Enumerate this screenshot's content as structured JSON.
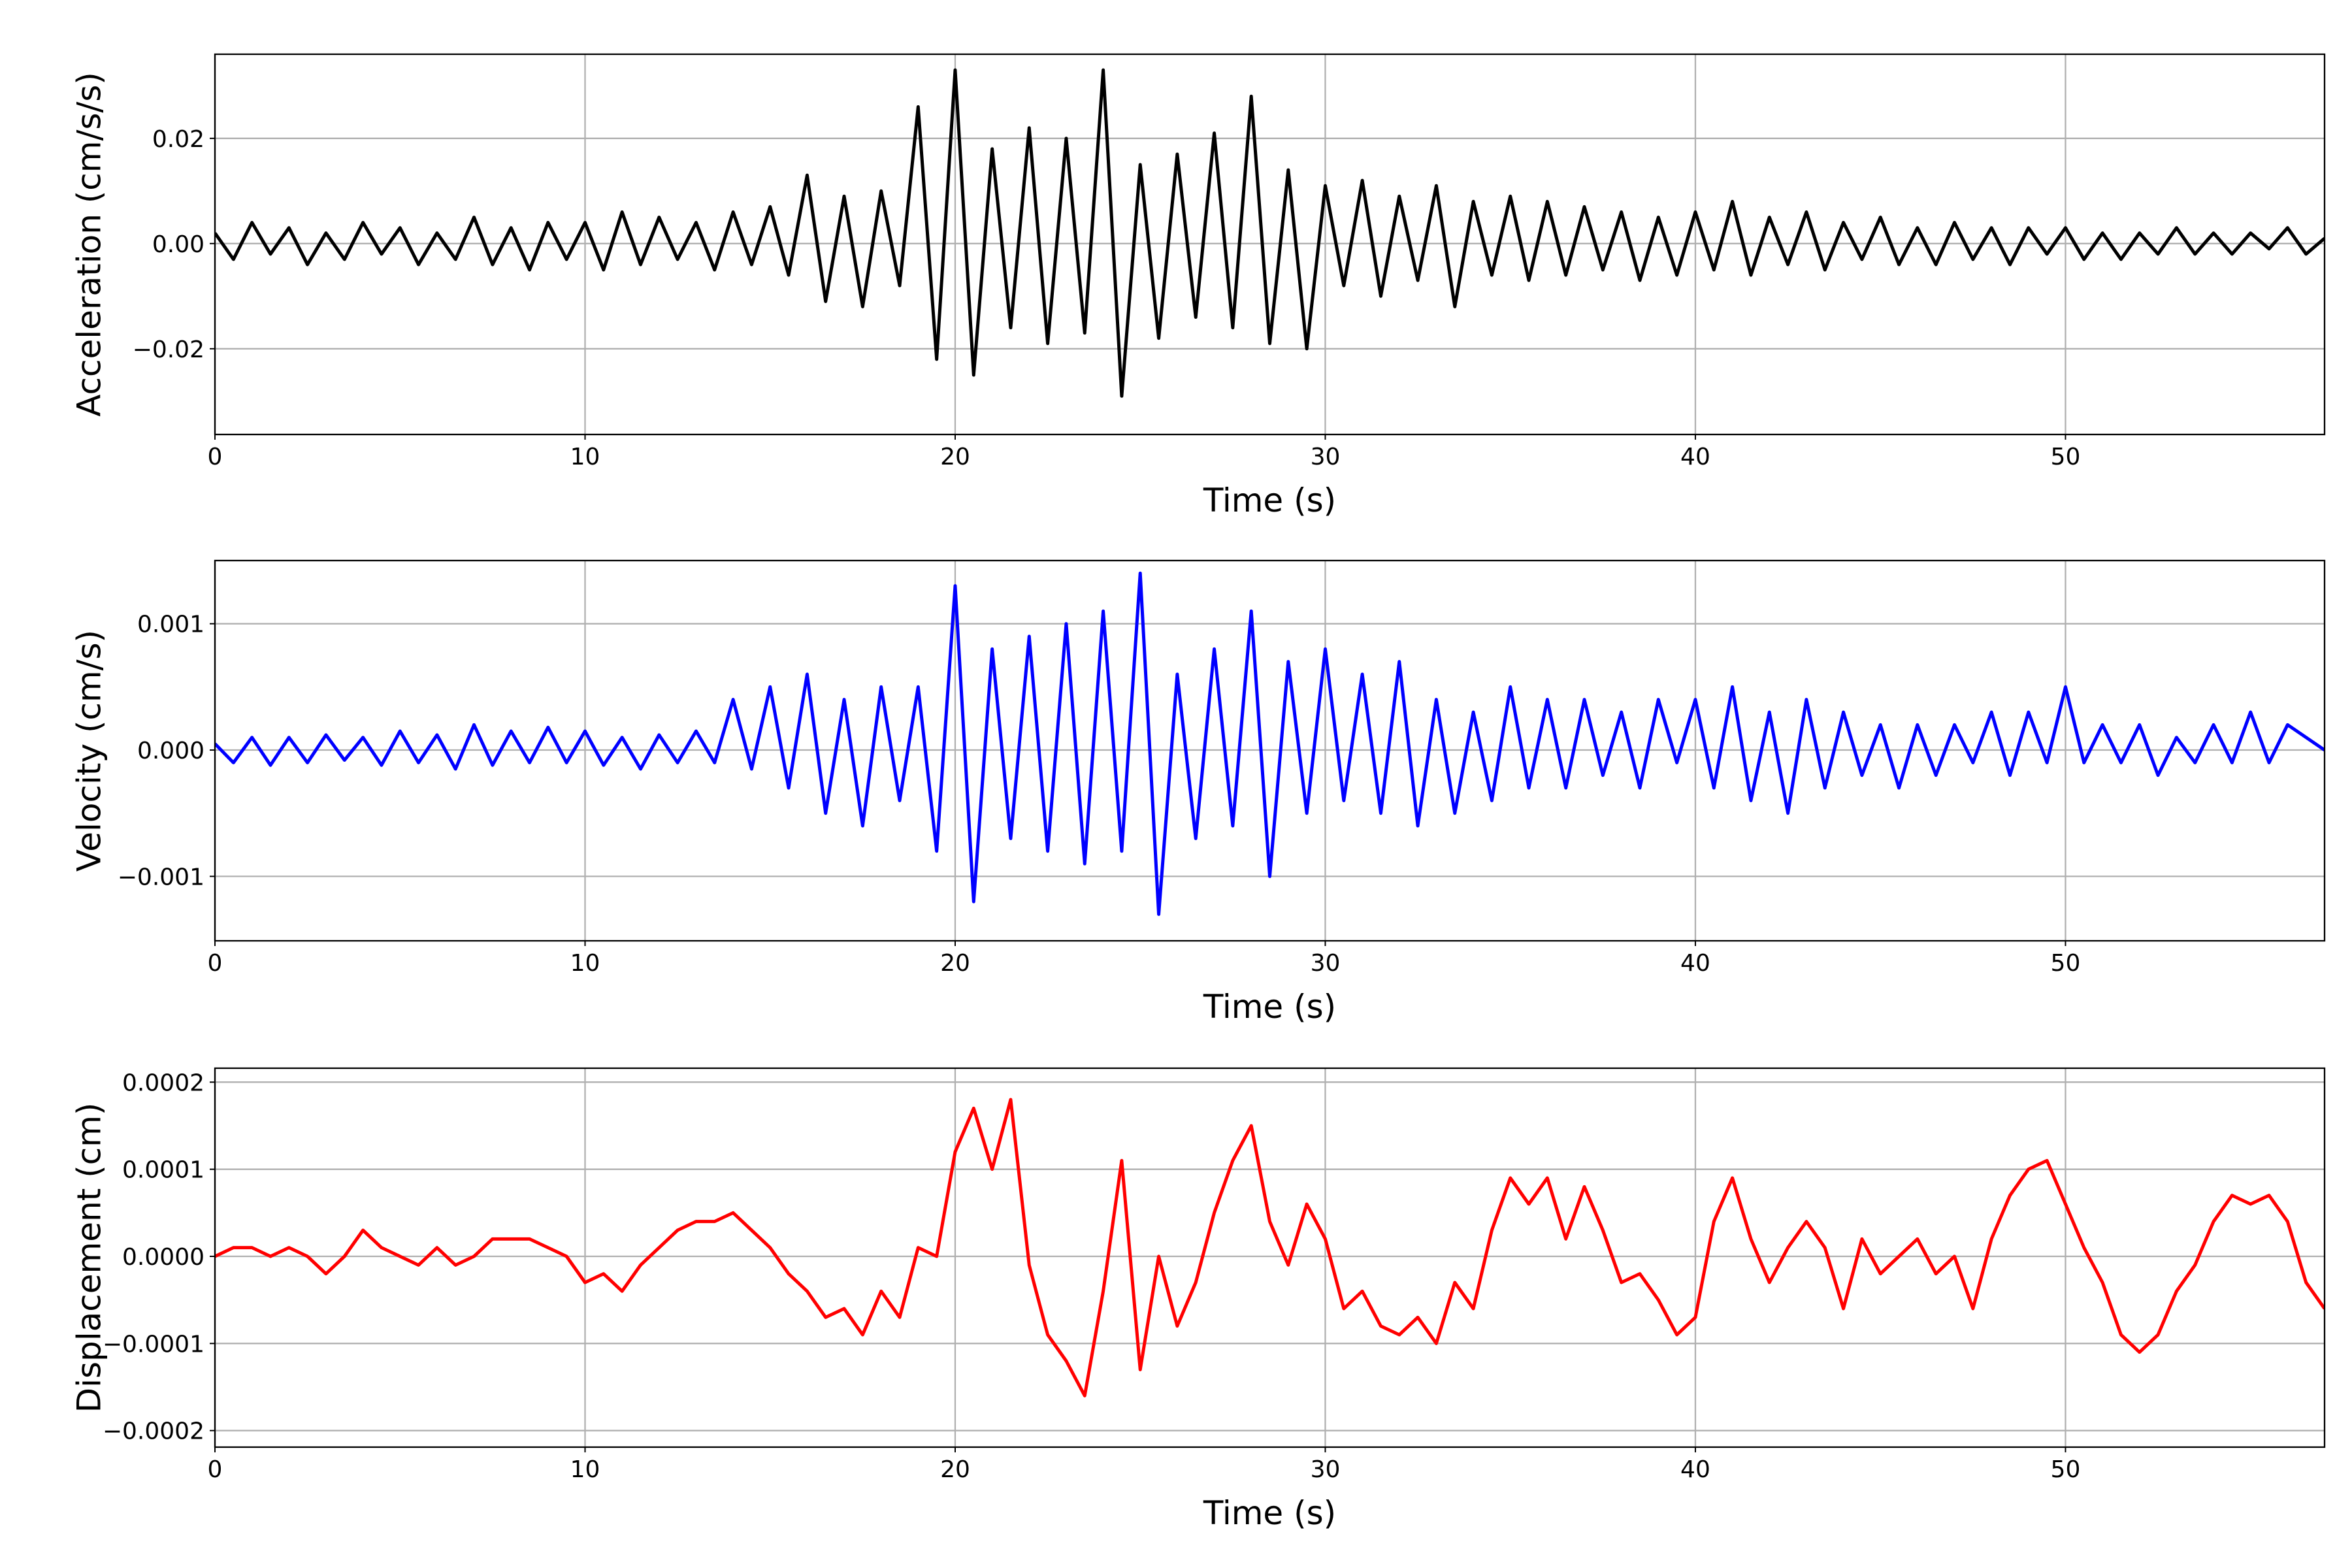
{
  "chart_data": [
    {
      "type": "line",
      "xlabel": "Time (s)",
      "ylabel": "Acceleration (cm/s/s)",
      "color": "#000000",
      "grid": true,
      "xlim": [
        0,
        57
      ],
      "ylim": [
        -0.0363,
        0.036
      ],
      "xticks": [
        0,
        10,
        20,
        30,
        40,
        50
      ],
      "yticks": [
        {
          "value": -0.02,
          "label": "−0.02"
        },
        {
          "value": 0,
          "label": "0.00"
        },
        0.02
      ],
      "x": [
        0,
        0.5,
        1,
        1.5,
        2,
        2.5,
        3,
        3.5,
        4,
        4.5,
        5,
        5.5,
        6,
        6.5,
        7,
        7.5,
        8,
        8.5,
        9,
        9.5,
        10,
        10.5,
        11,
        11.5,
        12,
        12.5,
        13,
        13.5,
        14,
        14.5,
        15,
        15.5,
        16,
        16.5,
        17,
        17.5,
        18,
        18.5,
        19,
        19.5,
        20,
        20.5,
        21,
        21.5,
        22,
        22.5,
        23,
        23.5,
        24,
        24.5,
        25,
        25.5,
        26,
        26.5,
        27,
        27.5,
        28,
        28.5,
        29,
        29.5,
        30,
        30.5,
        31,
        31.5,
        32,
        32.5,
        33,
        33.5,
        34,
        34.5,
        35,
        35.5,
        36,
        36.5,
        37,
        37.5,
        38,
        38.5,
        39,
        39.5,
        40,
        40.5,
        41,
        41.5,
        42,
        42.5,
        43,
        43.5,
        44,
        44.5,
        45,
        45.5,
        46,
        46.5,
        47,
        47.5,
        48,
        48.5,
        49,
        49.5,
        50,
        50.5,
        51,
        51.5,
        52,
        52.5,
        53,
        53.5,
        54,
        54.5,
        55,
        55.5,
        56,
        56.5,
        57
      ],
      "values": [
        0.002,
        -0.003,
        0.004,
        -0.002,
        0.003,
        -0.004,
        0.002,
        -0.003,
        0.004,
        -0.002,
        0.003,
        -0.004,
        0.002,
        -0.003,
        0.005,
        -0.004,
        0.003,
        -0.005,
        0.004,
        -0.003,
        0.004,
        -0.005,
        0.006,
        -0.004,
        0.005,
        -0.003,
        0.004,
        -0.005,
        0.006,
        -0.004,
        0.007,
        -0.006,
        0.013,
        -0.011,
        0.009,
        -0.012,
        0.01,
        -0.008,
        0.026,
        -0.022,
        0.033,
        -0.025,
        0.018,
        -0.016,
        0.022,
        -0.019,
        0.02,
        -0.017,
        0.033,
        -0.029,
        0.015,
        -0.018,
        0.017,
        -0.014,
        0.021,
        -0.016,
        0.028,
        -0.019,
        0.014,
        -0.02,
        0.011,
        -0.008,
        0.012,
        -0.01,
        0.009,
        -0.007,
        0.011,
        -0.012,
        0.008,
        -0.006,
        0.009,
        -0.007,
        0.008,
        -0.006,
        0.007,
        -0.005,
        0.006,
        -0.007,
        0.005,
        -0.006,
        0.006,
        -0.005,
        0.008,
        -0.006,
        0.005,
        -0.004,
        0.006,
        -0.005,
        0.004,
        -0.003,
        0.005,
        -0.004,
        0.003,
        -0.004,
        0.004,
        -0.003,
        0.003,
        -0.004,
        0.003,
        -0.002,
        0.003,
        -0.003,
        0.002,
        -0.003,
        0.002,
        -0.002,
        0.003,
        -0.002,
        0.002,
        -0.002,
        0.002,
        -0.001,
        0.003,
        -0.002,
        0.001
      ]
    },
    {
      "type": "line",
      "xlabel": "Time (s)",
      "ylabel": "Velocity (cm/s)",
      "color": "#0000ff",
      "grid": true,
      "xlim": [
        0,
        57
      ],
      "ylim": [
        -0.00151,
        0.0015
      ],
      "xticks": [
        0,
        10,
        20,
        30,
        40,
        50
      ],
      "yticks": [
        {
          "value": -0.001,
          "label": "−0.001"
        },
        {
          "value": 0,
          "label": "0.000"
        },
        0.001
      ],
      "x": [
        0,
        0.5,
        1,
        1.5,
        2,
        2.5,
        3,
        3.5,
        4,
        4.5,
        5,
        5.5,
        6,
        6.5,
        7,
        7.5,
        8,
        8.5,
        9,
        9.5,
        10,
        10.5,
        11,
        11.5,
        12,
        12.5,
        13,
        13.5,
        14,
        14.5,
        15,
        15.5,
        16,
        16.5,
        17,
        17.5,
        18,
        18.5,
        19,
        19.5,
        20,
        20.5,
        21,
        21.5,
        22,
        22.5,
        23,
        23.5,
        24,
        24.5,
        25,
        25.5,
        26,
        26.5,
        27,
        27.5,
        28,
        28.5,
        29,
        29.5,
        30,
        30.5,
        31,
        31.5,
        32,
        32.5,
        33,
        33.5,
        34,
        34.5,
        35,
        35.5,
        36,
        36.5,
        37,
        37.5,
        38,
        38.5,
        39,
        39.5,
        40,
        40.5,
        41,
        41.5,
        42,
        42.5,
        43,
        43.5,
        44,
        44.5,
        45,
        45.5,
        46,
        46.5,
        47,
        47.5,
        48,
        48.5,
        49,
        49.5,
        50,
        50.5,
        51,
        51.5,
        52,
        52.5,
        53,
        53.5,
        54,
        54.5,
        55,
        55.5,
        56,
        56.5,
        57
      ],
      "values": [
        5e-05,
        -0.0001,
        0.0001,
        -0.00012,
        0.0001,
        -0.0001,
        0.00012,
        -8e-05,
        0.0001,
        -0.00012,
        0.00015,
        -0.0001,
        0.00012,
        -0.00015,
        0.0002,
        -0.00012,
        0.00015,
        -0.0001,
        0.00018,
        -0.0001,
        0.00015,
        -0.00012,
        0.0001,
        -0.00015,
        0.00012,
        -0.0001,
        0.00015,
        -0.0001,
        0.0004,
        -0.00015,
        0.0005,
        -0.0003,
        0.0006,
        -0.0005,
        0.0004,
        -0.0006,
        0.0005,
        -0.0004,
        0.0005,
        -0.0008,
        0.0013,
        -0.0012,
        0.0008,
        -0.0007,
        0.0009,
        -0.0008,
        0.001,
        -0.0009,
        0.0011,
        -0.0008,
        0.0014,
        -0.0013,
        0.0006,
        -0.0007,
        0.0008,
        -0.0006,
        0.0011,
        -0.001,
        0.0007,
        -0.0005,
        0.0008,
        -0.0004,
        0.0006,
        -0.0005,
        0.0007,
        -0.0006,
        0.0004,
        -0.0005,
        0.0003,
        -0.0004,
        0.0005,
        -0.0003,
        0.0004,
        -0.0003,
        0.0004,
        -0.0002,
        0.0003,
        -0.0003,
        0.0004,
        -0.0001,
        0.0004,
        -0.0003,
        0.0005,
        -0.0004,
        0.0003,
        -0.0005,
        0.0004,
        -0.0003,
        0.0003,
        -0.0002,
        0.0002,
        -0.0003,
        0.0002,
        -0.0002,
        0.0002,
        -0.0001,
        0.0003,
        -0.0002,
        0.0003,
        -0.0001,
        0.0005,
        -0.0001,
        0.0002,
        -0.0001,
        0.0002,
        -0.0002,
        0.0001,
        -0.0001,
        0.0002,
        -0.0001,
        0.0003,
        -0.0001,
        0.0002,
        0.0001,
        0
      ]
    },
    {
      "type": "line",
      "xlabel": "Time (s)",
      "ylabel": "Displacement (cm)",
      "color": "#ff0000",
      "grid": true,
      "xlim": [
        0,
        57
      ],
      "ylim": [
        -0.000219,
        0.000216
      ],
      "xticks": [
        0,
        10,
        20,
        30,
        40,
        50
      ],
      "yticks": [
        {
          "value": -0.0002,
          "label": "−0.0002"
        },
        {
          "value": -0.0001,
          "label": "−0.0001"
        },
        {
          "value": 0,
          "label": "0.0000"
        },
        0.0001,
        0.0002
      ],
      "x": [
        0,
        0.5,
        1,
        1.5,
        2,
        2.5,
        3,
        3.5,
        4,
        4.5,
        5,
        5.5,
        6,
        6.5,
        7,
        7.5,
        8,
        8.5,
        9,
        9.5,
        10,
        10.5,
        11,
        11.5,
        12,
        12.5,
        13,
        13.5,
        14,
        14.5,
        15,
        15.5,
        16,
        16.5,
        17,
        17.5,
        18,
        18.5,
        19,
        19.5,
        20,
        20.5,
        21,
        21.5,
        22,
        22.5,
        23,
        23.5,
        24,
        24.5,
        25,
        25.5,
        26,
        26.5,
        27,
        27.5,
        28,
        28.5,
        29,
        29.5,
        30,
        30.5,
        31,
        31.5,
        32,
        32.5,
        33,
        33.5,
        34,
        34.5,
        35,
        35.5,
        36,
        36.5,
        37,
        37.5,
        38,
        38.5,
        39,
        39.5,
        40,
        40.5,
        41,
        41.5,
        42,
        42.5,
        43,
        43.5,
        44,
        44.5,
        45,
        45.5,
        46,
        46.5,
        47,
        47.5,
        48,
        48.5,
        49,
        49.5,
        50,
        50.5,
        51,
        51.5,
        52,
        52.5,
        53,
        53.5,
        54,
        54.5,
        55,
        55.5,
        56,
        56.5,
        57
      ],
      "values": [
        0,
        1e-05,
        1e-05,
        0,
        1e-05,
        0,
        -2e-05,
        0,
        3e-05,
        1e-05,
        0,
        -1e-05,
        1e-05,
        -1e-05,
        0,
        2e-05,
        2e-05,
        2e-05,
        1e-05,
        0,
        -3e-05,
        -2e-05,
        -4e-05,
        -1e-05,
        1e-05,
        3e-05,
        4e-05,
        4e-05,
        5e-05,
        3e-05,
        1e-05,
        -2e-05,
        -4e-05,
        -7e-05,
        -6e-05,
        -9e-05,
        -4e-05,
        -7e-05,
        1e-05,
        0,
        0.00012,
        0.00017,
        0.0001,
        0.00018,
        -1e-05,
        -9e-05,
        -0.00012,
        -0.00016,
        -4e-05,
        0.00011,
        -0.00013,
        0,
        -8e-05,
        -3e-05,
        5e-05,
        0.00011,
        0.00015,
        4e-05,
        -1e-05,
        6e-05,
        2e-05,
        -6e-05,
        -4e-05,
        -8e-05,
        -9e-05,
        -7e-05,
        -0.0001,
        -3e-05,
        -6e-05,
        3e-05,
        9e-05,
        6e-05,
        9e-05,
        2e-05,
        8e-05,
        3e-05,
        -3e-05,
        -2e-05,
        -5e-05,
        -9e-05,
        -7e-05,
        4e-05,
        9e-05,
        2e-05,
        -3e-05,
        1e-05,
        4e-05,
        1e-05,
        -6e-05,
        2e-05,
        -2e-05,
        0,
        2e-05,
        -2e-05,
        0,
        -6e-05,
        2e-05,
        7e-05,
        0.0001,
        0.00011,
        6e-05,
        1e-05,
        -3e-05,
        -9e-05,
        -0.00011,
        -9e-05,
        -4e-05,
        -1e-05,
        4e-05,
        7e-05,
        6e-05,
        7e-05,
        4e-05,
        -3e-05,
        -6e-05
      ]
    }
  ]
}
